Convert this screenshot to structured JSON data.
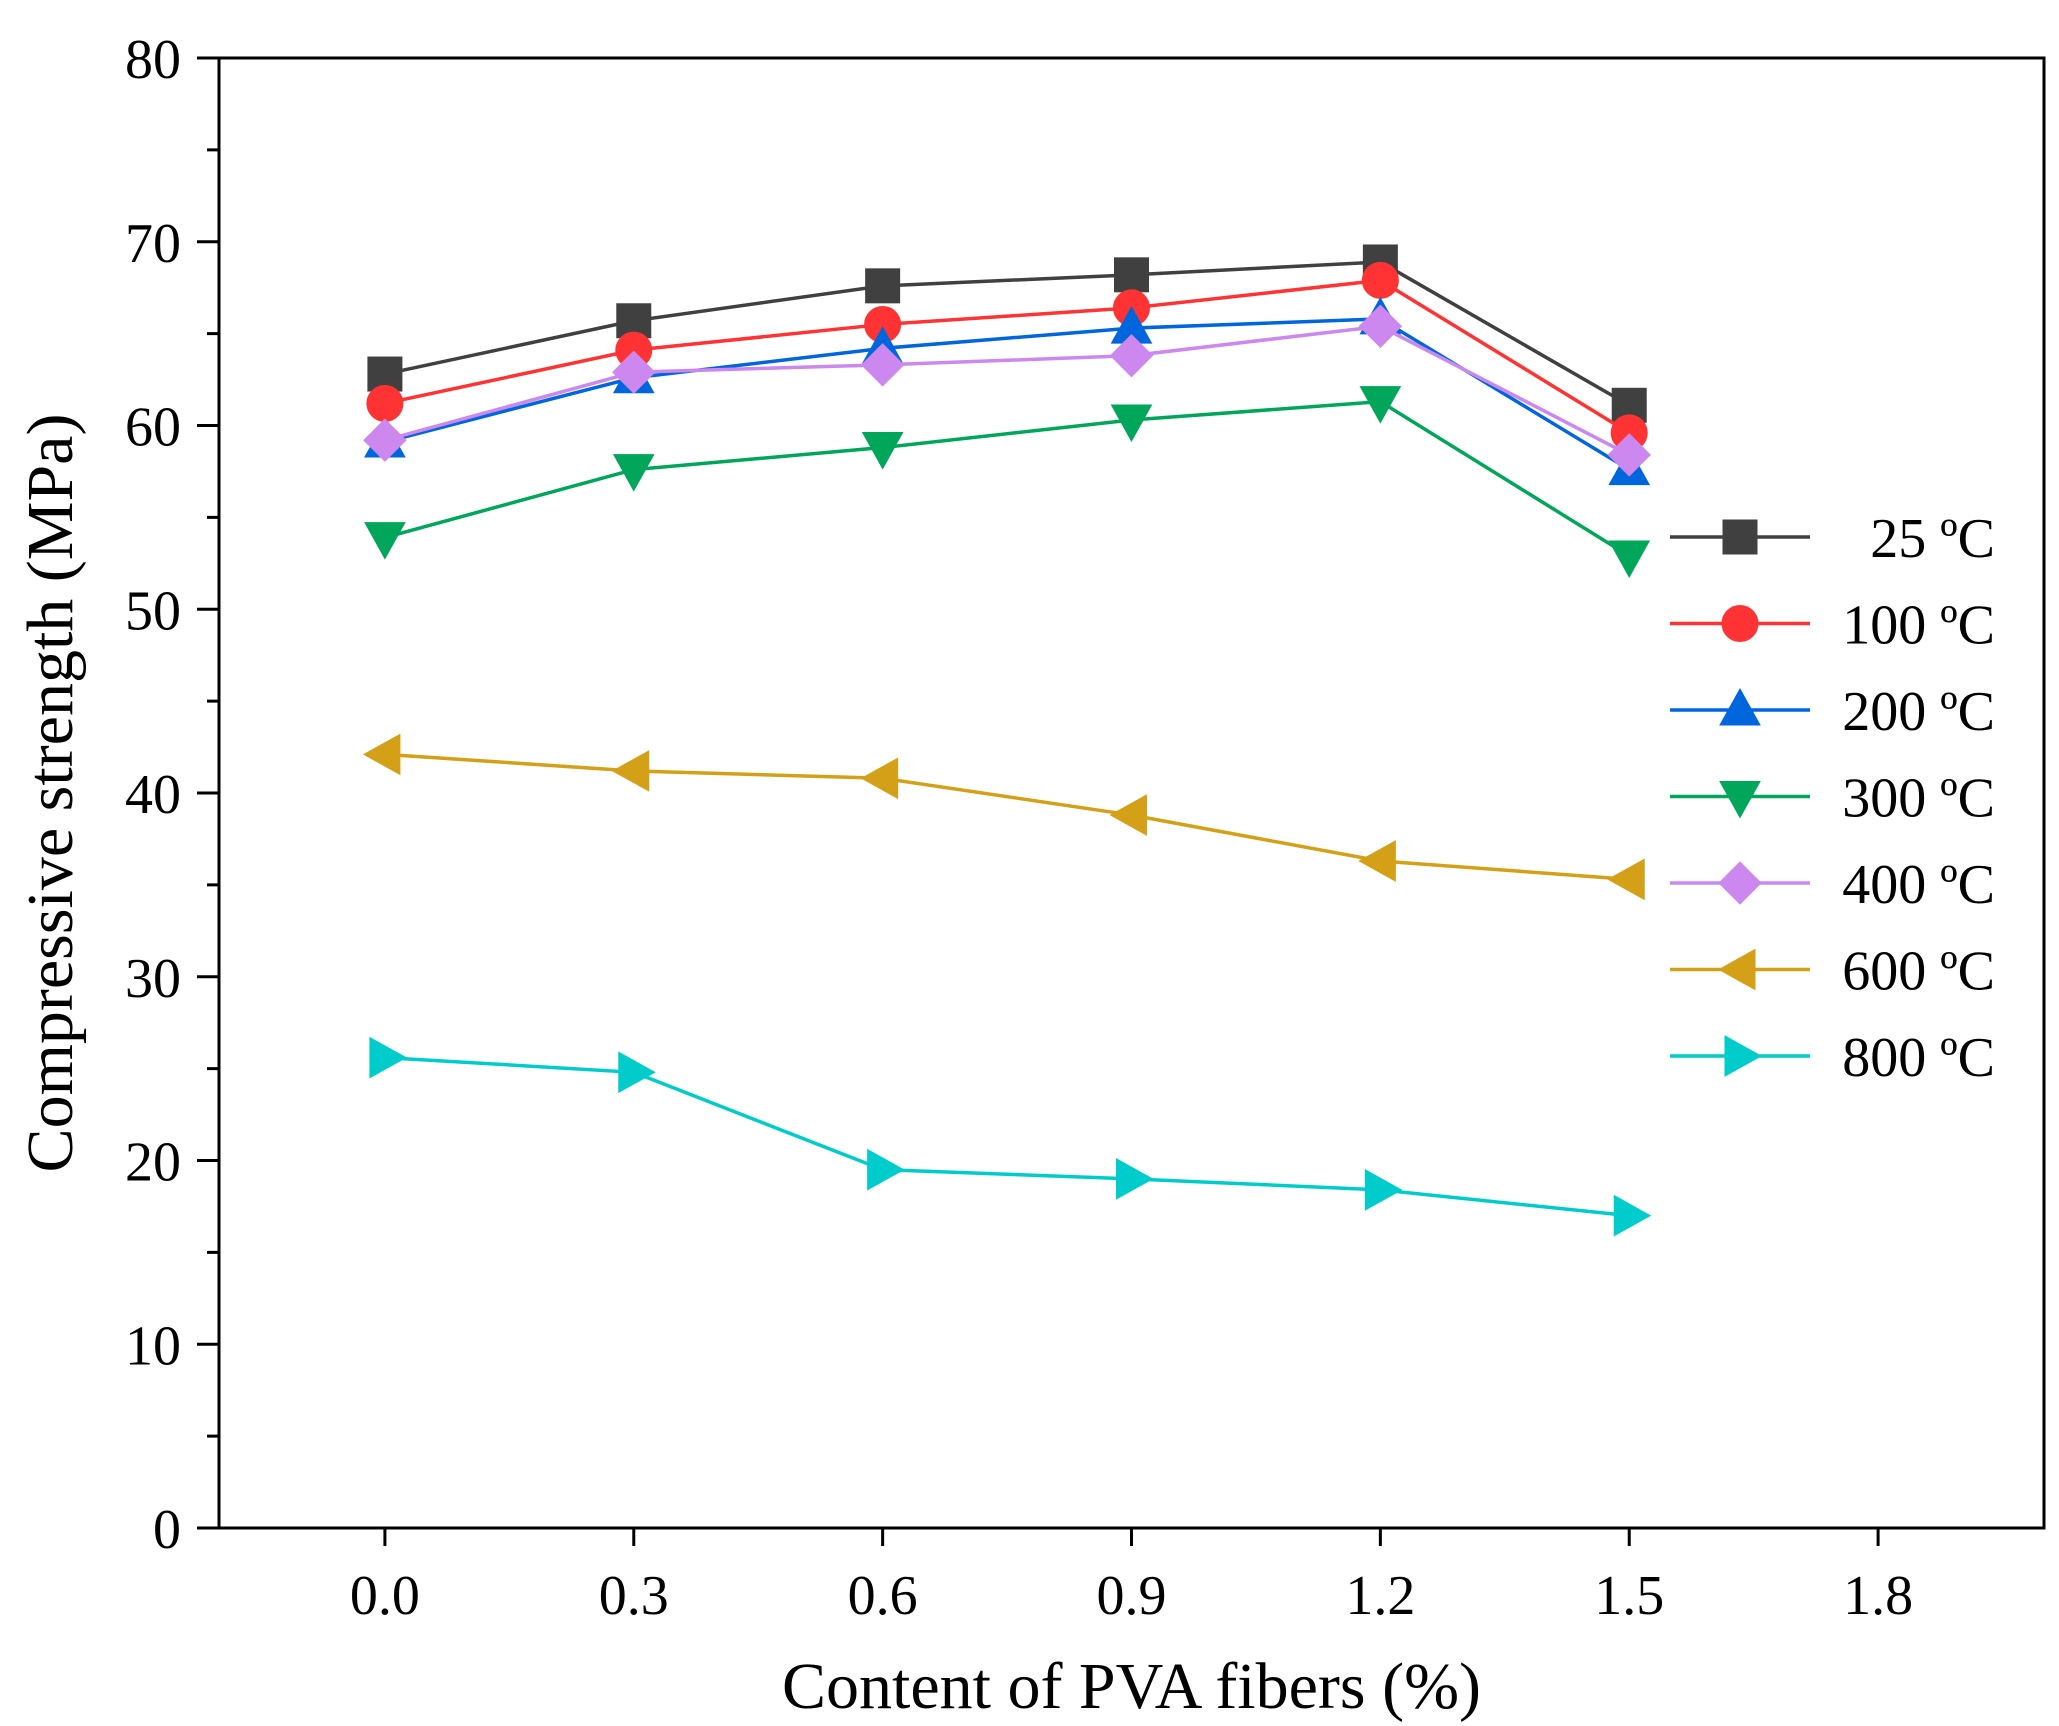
{
  "chart_data": {
    "type": "line",
    "title": "",
    "xlabel": "Content of PVA fibers (%)",
    "ylabel": "Compressive strength (MPa)",
    "xlim": [
      -0.2,
      2.0
    ],
    "ylim": [
      0,
      80
    ],
    "xticks": [
      0.0,
      0.3,
      0.6,
      0.9,
      1.2,
      1.5,
      1.8
    ],
    "xtick_labels": [
      "0.0",
      "0.3",
      "0.6",
      "0.9",
      "1.2",
      "1.5",
      "1.8"
    ],
    "yticks": [
      0,
      10,
      20,
      30,
      40,
      50,
      60,
      70,
      80
    ],
    "ytick_labels": [
      "0",
      "10",
      "20",
      "30",
      "40",
      "50",
      "60",
      "70",
      "80"
    ],
    "grid": false,
    "legend_position": "right",
    "x": [
      0.0,
      0.3,
      0.6,
      0.9,
      1.2,
      1.5
    ],
    "series": [
      {
        "name": "25 ºC",
        "marker": "square",
        "color": "#404040",
        "values": [
          62.8,
          65.7,
          67.6,
          68.2,
          68.9,
          61.1
        ]
      },
      {
        "name": "100 ºC",
        "marker": "circle",
        "color": "#ff3333",
        "values": [
          61.2,
          64.1,
          65.5,
          66.4,
          67.9,
          59.6
        ]
      },
      {
        "name": "200 ºC",
        "marker": "triangle-up",
        "color": "#0066dd",
        "values": [
          59.1,
          62.6,
          64.2,
          65.3,
          65.8,
          57.6
        ]
      },
      {
        "name": "300 ºC",
        "marker": "triangle-down",
        "color": "#00a65a",
        "values": [
          53.9,
          57.6,
          58.8,
          60.3,
          61.3,
          52.9
        ]
      },
      {
        "name": "400 ºC",
        "marker": "diamond",
        "color": "#cc88ee",
        "values": [
          59.2,
          62.9,
          63.3,
          63.8,
          65.4,
          58.4
        ]
      },
      {
        "name": "600 ºC",
        "marker": "triangle-left",
        "color": "#d4a017",
        "values": [
          42.1,
          41.2,
          40.8,
          38.8,
          36.3,
          35.3
        ]
      },
      {
        "name": "800 ºC",
        "marker": "triangle-right",
        "color": "#00cccc",
        "values": [
          25.6,
          24.8,
          19.5,
          19.0,
          18.4,
          17.0
        ]
      }
    ]
  }
}
